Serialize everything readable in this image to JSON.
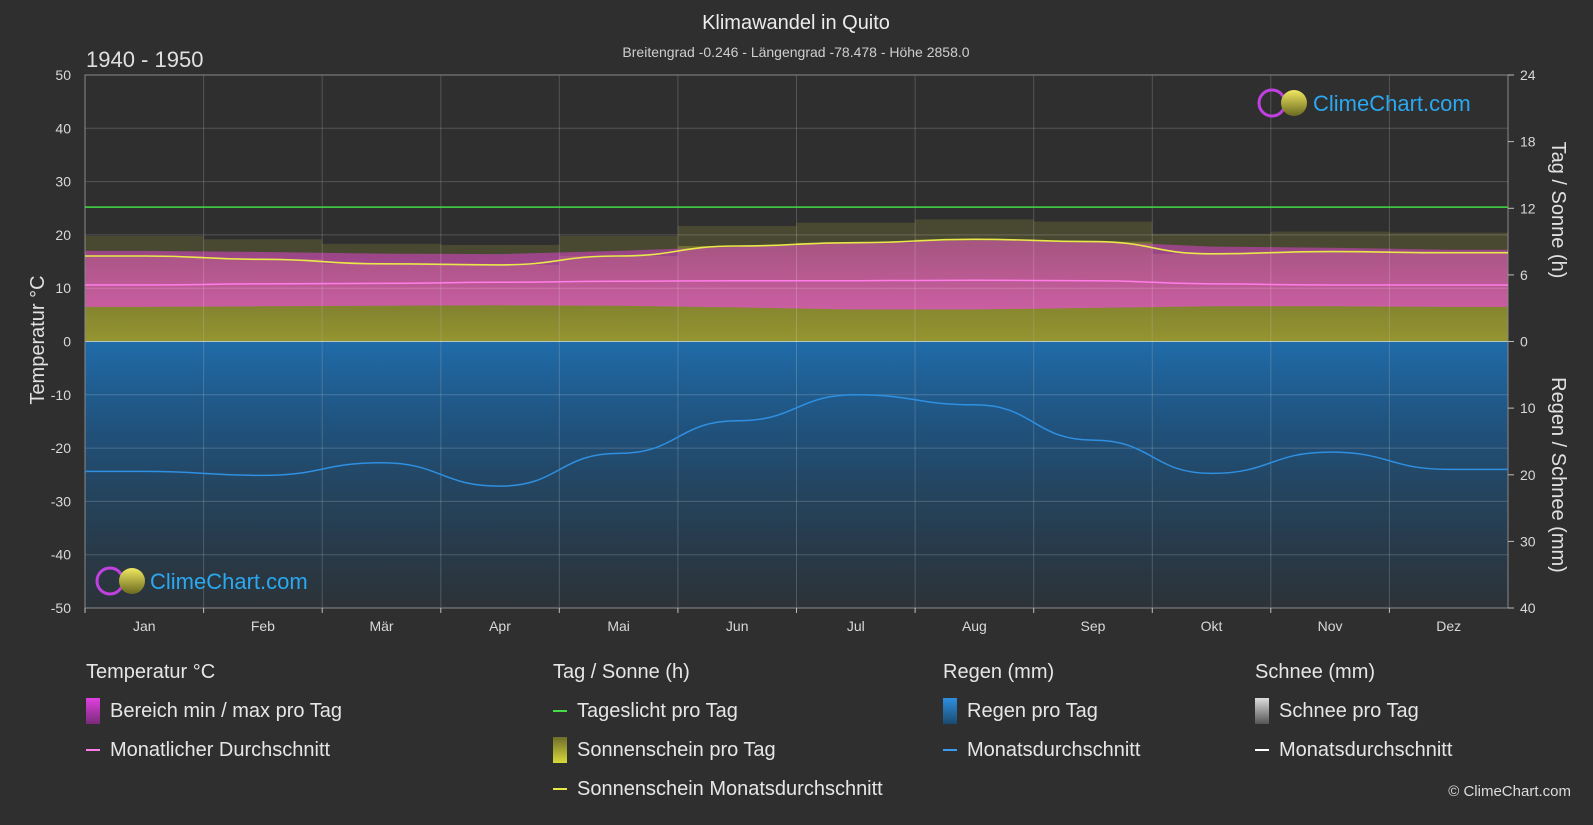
{
  "chart_data": {
    "type": "area",
    "title": "Klimawandel in Quito",
    "subtitle": "Breitengrad -0.246 - Längengrad -78.478 - Höhe 2858.0",
    "period": "1940 - 1950",
    "categories": [
      "Jan",
      "Feb",
      "Mär",
      "Apr",
      "Mai",
      "Jun",
      "Jul",
      "Aug",
      "Sep",
      "Okt",
      "Nov",
      "Dez"
    ],
    "y_left": {
      "label": "Temperatur °C",
      "range": [
        -50,
        50
      ],
      "ticks": [
        50,
        40,
        30,
        20,
        10,
        0,
        -10,
        -20,
        -30,
        -40,
        -50
      ]
    },
    "y_right_top": {
      "label": "Tag / Sonne (h)",
      "range": [
        0,
        24
      ],
      "ticks": [
        24,
        18,
        12,
        6,
        0
      ]
    },
    "y_right_bottom": {
      "label": "Regen / Schnee (mm)",
      "range": [
        0,
        40
      ],
      "ticks": [
        0,
        10,
        20,
        30,
        40
      ]
    },
    "grid": true,
    "series": [
      {
        "name": "Tageslicht pro Tag",
        "unit": "h",
        "color": "#44dd44",
        "values": [
          12.1,
          12.1,
          12.1,
          12.1,
          12.1,
          12.1,
          12.1,
          12.1,
          12.1,
          12.1,
          12.1,
          12.1
        ]
      },
      {
        "name": "Sonnenschein Monatsdurchschnitt",
        "unit": "h",
        "color": "#e8e84a",
        "values": [
          7.7,
          7.4,
          7.0,
          6.9,
          7.7,
          8.6,
          8.9,
          9.2,
          9.0,
          7.9,
          8.1,
          8.0
        ]
      },
      {
        "name": "Monatlicher Durchschnitt",
        "unit": "°C",
        "color": "#ff7de8",
        "values": [
          10.6,
          10.8,
          10.9,
          11.1,
          11.3,
          11.4,
          11.4,
          11.5,
          11.4,
          10.8,
          10.6,
          10.6
        ]
      },
      {
        "name": "Bereich min / max pro Tag",
        "unit": "°C",
        "color": "#d040c0",
        "min": [
          6.5,
          6.6,
          6.7,
          6.8,
          6.7,
          6.4,
          6.0,
          6.0,
          6.3,
          6.6,
          6.6,
          6.5
        ],
        "max": [
          17.0,
          16.8,
          16.5,
          16.4,
          17.0,
          17.8,
          18.6,
          19.0,
          18.8,
          17.8,
          17.6,
          17.2
        ]
      },
      {
        "name": "Regen Monatsdurchschnitt",
        "unit": "mm",
        "color": "#2f8fe0",
        "values": [
          19.5,
          20.1,
          18.2,
          21.7,
          16.8,
          11.9,
          8.0,
          9.5,
          14.8,
          19.8,
          16.6,
          19.2
        ]
      }
    ]
  },
  "logo_text": "ClimeChart.com",
  "legend": {
    "temp": {
      "header": "Temperatur °C",
      "range_label": "Bereich min / max pro Tag",
      "avg_label": "Monatlicher Durchschnitt",
      "range_color": "#e040e0",
      "avg_color": "#ff7de8"
    },
    "sun": {
      "header": "Tag / Sonne (h)",
      "daylight_label": "Tageslicht pro Tag",
      "sunshine_label": "Sonnenschein pro Tag",
      "sunshine_avg_label": "Sonnenschein Monatsdurchschnitt",
      "daylight_color": "#44dd44",
      "sunshine_color": "#d8d83a",
      "sunshine_avg_color": "#e8e84a"
    },
    "rain": {
      "header": "Regen (mm)",
      "rain_label": "Regen pro Tag",
      "rain_avg_label": "Monatsdurchschnitt",
      "rain_color": "#2f8fe0",
      "rain_avg_color": "#3a9cf0"
    },
    "snow": {
      "header": "Schnee (mm)",
      "snow_label": "Schnee pro Tag",
      "snow_avg_label": "Monatsdurchschnitt",
      "snow_color": "#dddddd",
      "snow_avg_color": "#ffffff"
    }
  },
  "copyright": "© ClimeChart.com"
}
